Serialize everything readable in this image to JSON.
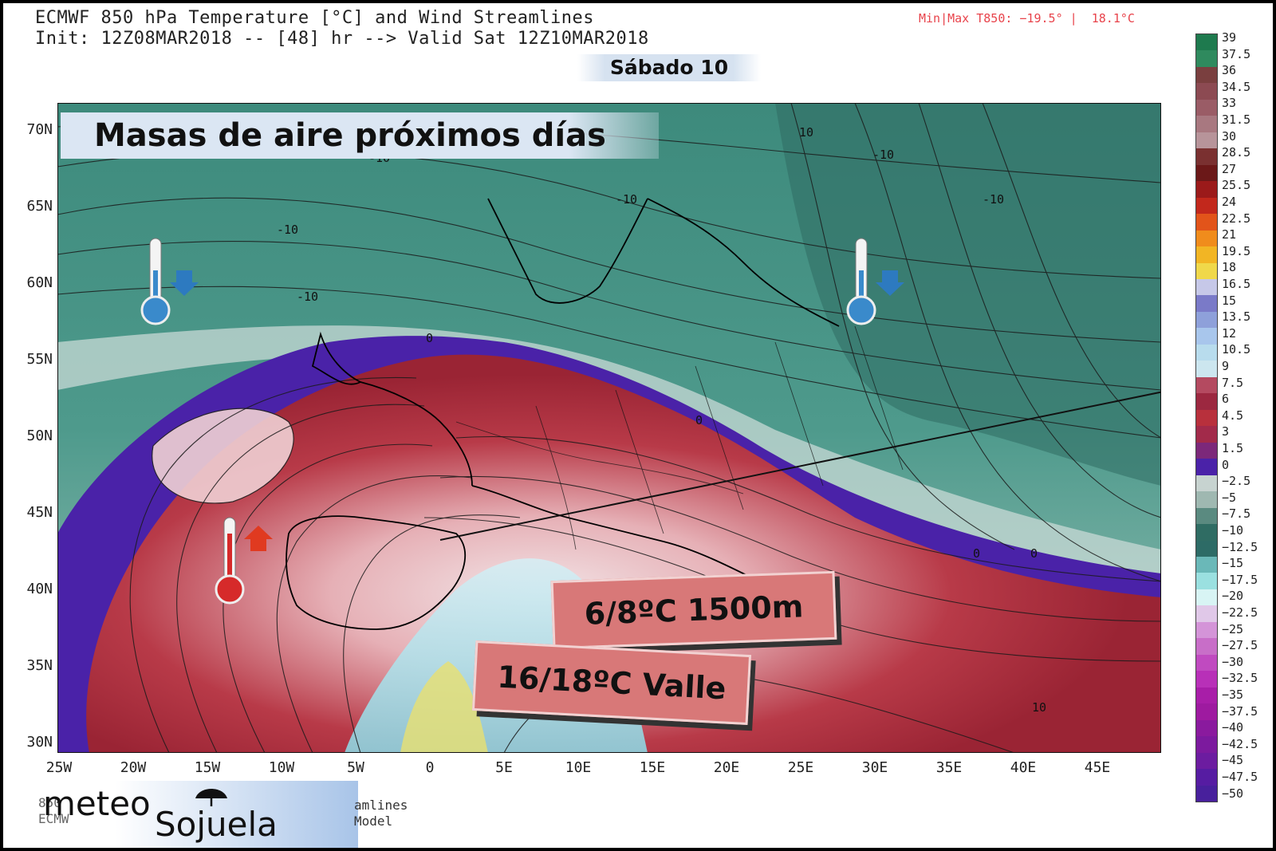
{
  "header": {
    "title_line1": "ECMWF 850 hPa Temperature [°C] and Wind Streamlines",
    "title_line2": "Init: 12Z08MAR2018 -- [48] hr --> Valid Sat 12Z10MAR2018",
    "minmax": "Min|Max T850: −19.5° |  18.1°C",
    "day": "Sábado 10"
  },
  "headline": "Masas de aire próximos días",
  "callouts": {
    "altitude": "6/8ºC 1500m",
    "valley": "16/18ºC Valle"
  },
  "axes": {
    "lat_labels": [
      "70N",
      "65N",
      "60N",
      "55N",
      "50N",
      "45N",
      "40N",
      "35N",
      "30N"
    ],
    "lon_labels": [
      "25W",
      "20W",
      "15W",
      "10W",
      "5W",
      "0",
      "5E",
      "10E",
      "15E",
      "20E",
      "25E",
      "30E",
      "35E",
      "40E",
      "45E"
    ]
  },
  "contour_labels": [
    "10",
    "-10",
    "-10",
    "-10",
    "-10",
    "-10",
    "-10",
    "0",
    "0",
    "0",
    "0",
    "10"
  ],
  "colorbar": {
    "labels": [
      "39",
      "37.5",
      "36",
      "34.5",
      "33",
      "31.5",
      "30",
      "28.5",
      "27",
      "25.5",
      "24",
      "22.5",
      "21",
      "19.5",
      "18",
      "16.5",
      "15",
      "13.5",
      "12",
      "10.5",
      "9",
      "7.5",
      "6",
      "4.5",
      "3",
      "1.5",
      "0",
      "−2.5",
      "−5",
      "−7.5",
      "−10",
      "−12.5",
      "−15",
      "−17.5",
      "−20",
      "−22.5",
      "−25",
      "−27.5",
      "−30",
      "−32.5",
      "−35",
      "−37.5",
      "−40",
      "−42.5",
      "−45",
      "−47.5",
      "−50"
    ],
    "colors": [
      "#1e7a4e",
      "#2f8a5e",
      "#7a3f3f",
      "#8c4a52",
      "#9a5c66",
      "#a87880",
      "#b7949a",
      "#7a3030",
      "#6b1818",
      "#9b1a1a",
      "#c2281c",
      "#e2541a",
      "#f08c1c",
      "#f2b524",
      "#f0d84a",
      "#c6c8e8",
      "#7a7ac8",
      "#8ea0da",
      "#a8c6ec",
      "#b8dced",
      "#cce6ef",
      "#b44a60",
      "#9c2840",
      "#b8303c",
      "#a22a4a",
      "#7c287a",
      "#4a22a8",
      "#c7d3d0",
      "#9fb8b1",
      "#5a8a80",
      "#2f6c63",
      "#2d6b66",
      "#6ab8b8",
      "#9ae0e0",
      "#d8f4f4",
      "#e0c8e8",
      "#d494d8",
      "#c86ec8",
      "#c04ac0",
      "#b830b8",
      "#a81ea8",
      "#9e1aa0",
      "#8a1a9e",
      "#7c1a9e",
      "#6c1ca0",
      "#561ca2",
      "#48209c"
    ]
  },
  "legend_icons": [
    "thermometer-cold-icon",
    "arrow-down-icon",
    "thermometer-hot-icon",
    "arrow-up-icon"
  ],
  "logo": {
    "line1": "meteo",
    "line2": "Sojuela"
  },
  "footer_fragments": {
    "left1": "850",
    "left2": "ECMW",
    "right1": "amlines",
    "right2": "Model"
  }
}
